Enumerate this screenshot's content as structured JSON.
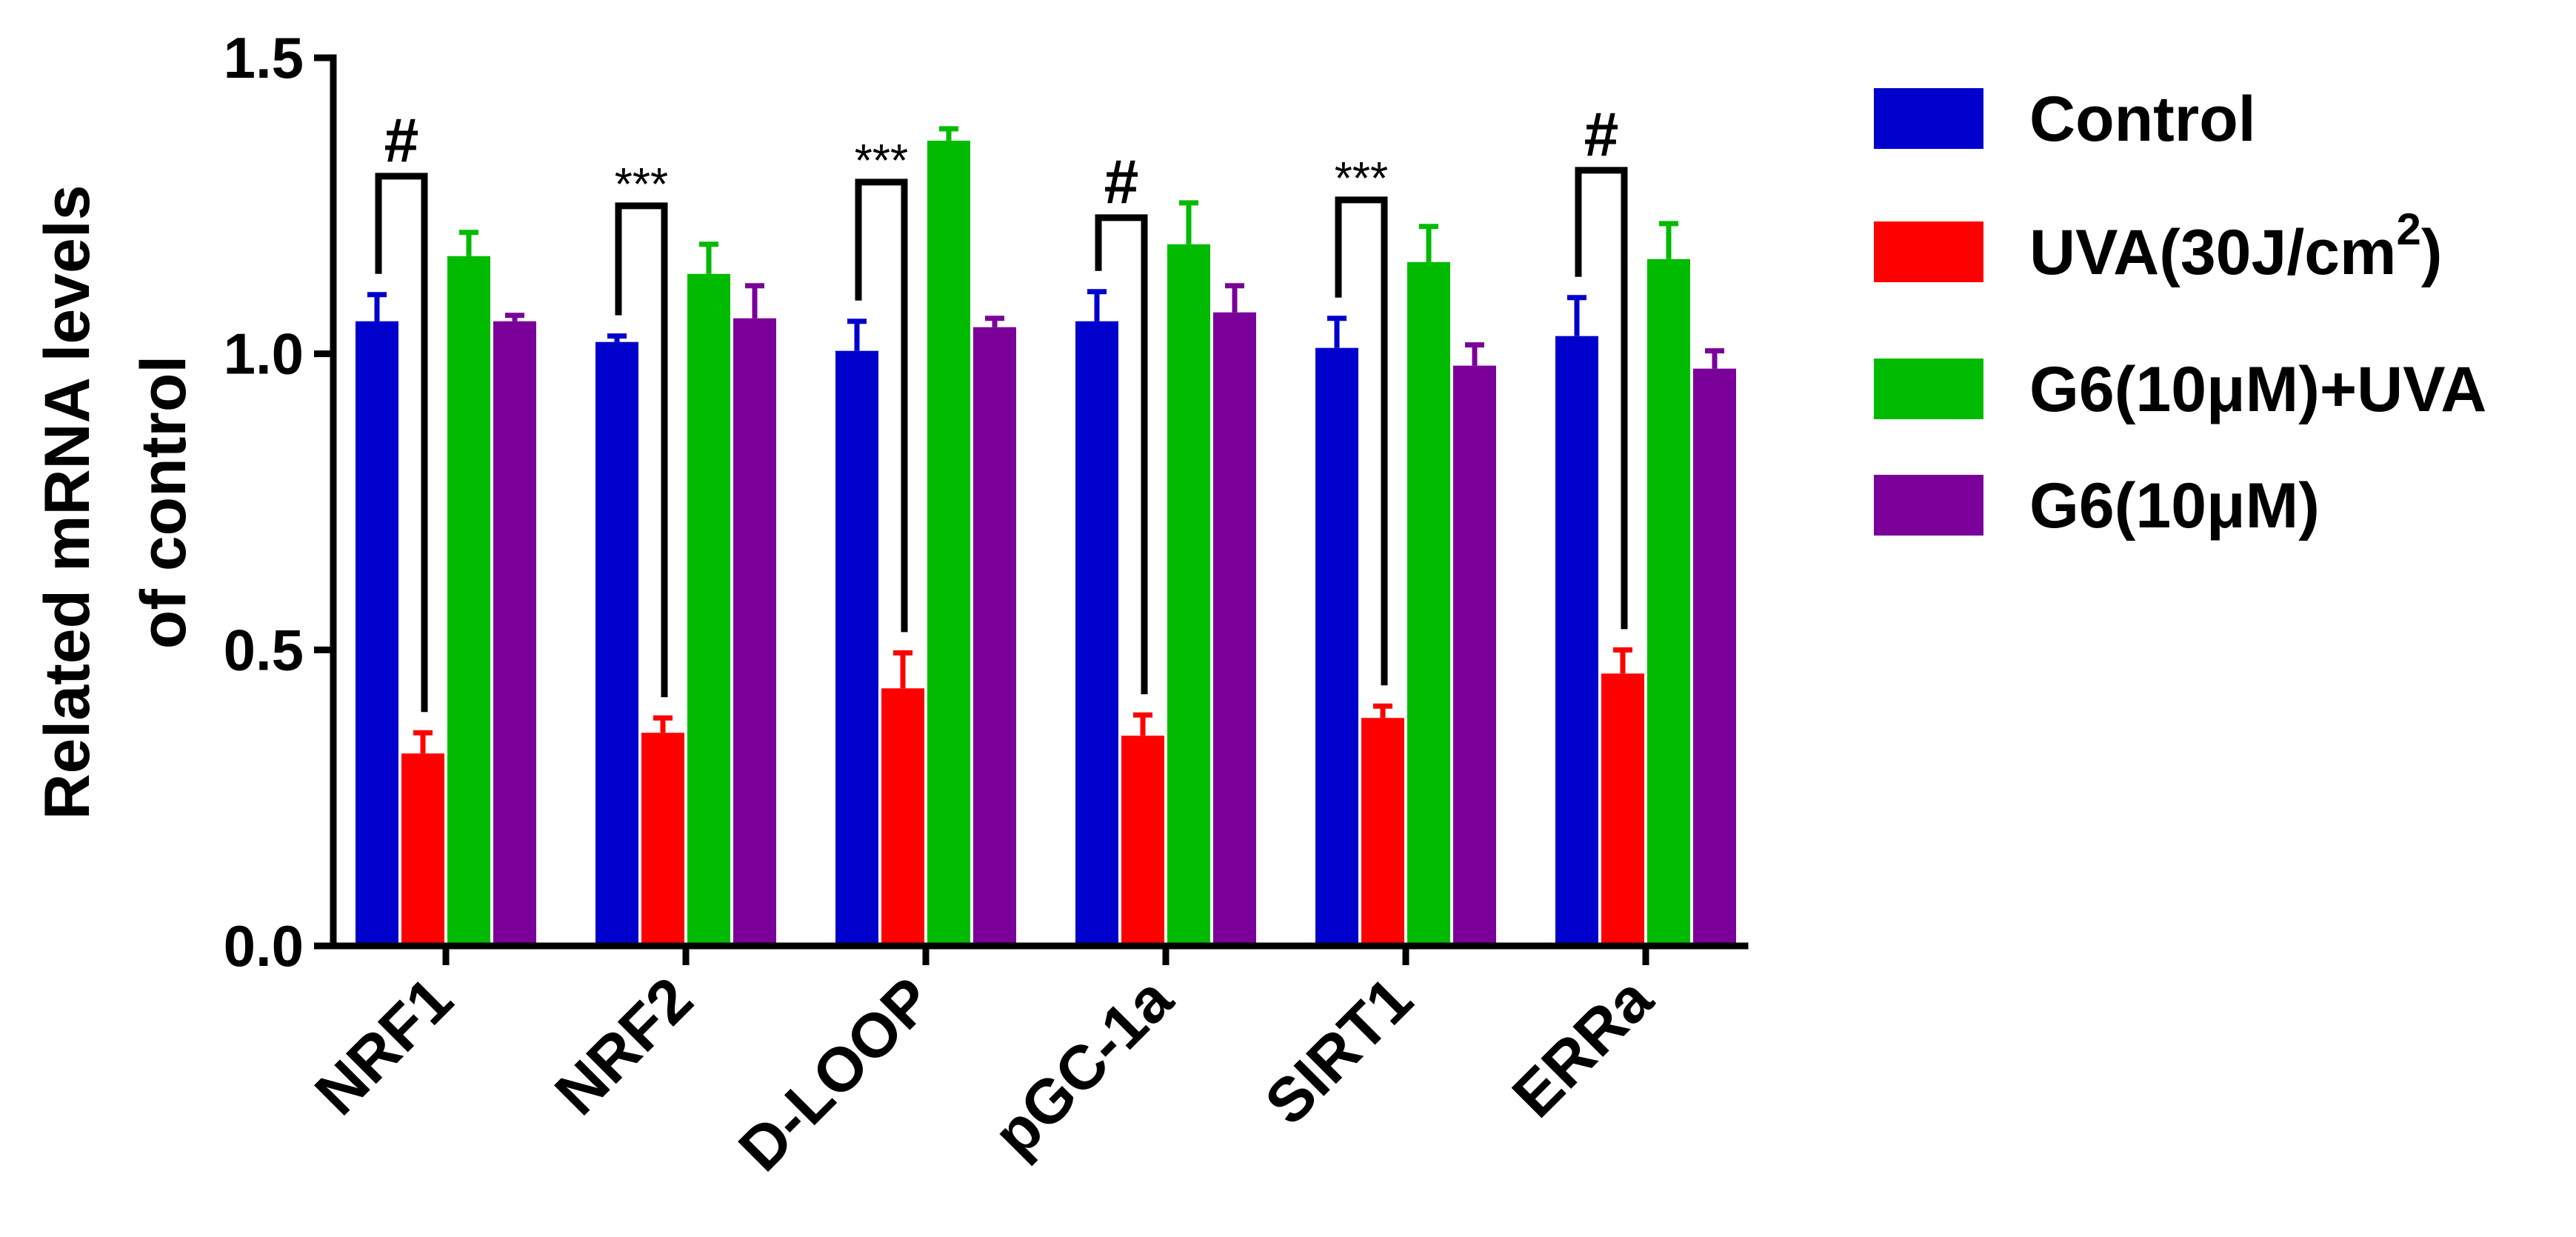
{
  "chart_data": {
    "type": "bar",
    "title": "",
    "xlabel": "",
    "ylabel_lines": [
      "Related mRNA levels",
      "of control"
    ],
    "ylim": [
      0,
      1.5
    ],
    "yticks": [
      0.0,
      0.5,
      1.0,
      1.5
    ],
    "ytick_labels": [
      "0.0",
      "0.5",
      "1.0",
      "1.5"
    ],
    "categories": [
      "NRF1",
      "NRF2",
      "D-LOOP",
      "pGC-1a",
      "SIRT1",
      "ERRa"
    ],
    "series": [
      {
        "name": "Control",
        "color": "#0000cc",
        "values": [
          1.055,
          1.02,
          1.005,
          1.055,
          1.01,
          1.03
        ],
        "errors": [
          0.045,
          0.01,
          0.05,
          0.05,
          0.05,
          0.065
        ]
      },
      {
        "name": "UVA(30J/cm2)",
        "color": "#ff0000",
        "values": [
          0.325,
          0.36,
          0.435,
          0.355,
          0.385,
          0.46
        ],
        "errors": [
          0.035,
          0.025,
          0.06,
          0.035,
          0.02,
          0.04
        ]
      },
      {
        "name": "G6(10μM)+UVA",
        "color": "#00bb00",
        "values": [
          1.165,
          1.135,
          1.36,
          1.185,
          1.155,
          1.16
        ],
        "errors": [
          0.04,
          0.05,
          0.02,
          0.07,
          0.06,
          0.06
        ]
      },
      {
        "name": "G6(10μM)",
        "color": "#7a0099",
        "values": [
          1.055,
          1.06,
          1.045,
          1.07,
          0.98,
          0.975
        ],
        "errors": [
          0.01,
          0.055,
          0.015,
          0.045,
          0.035,
          0.03
        ]
      }
    ],
    "legend": {
      "placement": "right",
      "entries": [
        {
          "text": "Control",
          "superscript": "",
          "suffix": ""
        },
        {
          "text": "UVA(30J/cm",
          "superscript": "2",
          "suffix": ")"
        },
        {
          "text": "G6(10μM)+UVA",
          "superscript": "",
          "suffix": ""
        },
        {
          "text": "G6(10μM)",
          "superscript": "",
          "suffix": ""
        }
      ]
    },
    "annotations": [
      {
        "category": "NRF1",
        "label": "#",
        "bracket_top": 1.3
      },
      {
        "category": "NRF2",
        "label": "***",
        "bracket_top": 1.25
      },
      {
        "category": "D-LOOP",
        "label": "***",
        "bracket_top": 1.29
      },
      {
        "category": "pGC-1a",
        "label": "#",
        "bracket_top": 1.23
      },
      {
        "category": "SIRT1",
        "label": "***",
        "bracket_top": 1.26
      },
      {
        "category": "ERRa",
        "label": "#",
        "bracket_top": 1.31
      }
    ]
  }
}
